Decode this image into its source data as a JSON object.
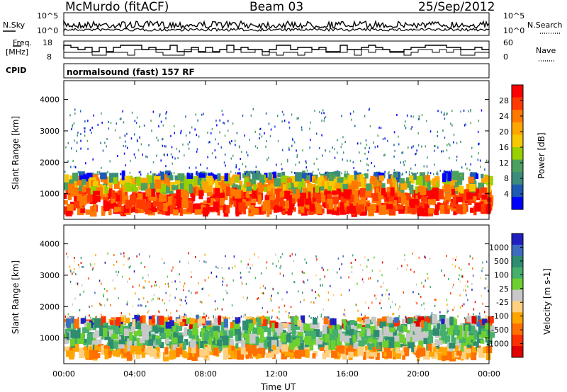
{
  "header": {
    "station": "McMurdo (fitACF)",
    "beam": "Beam 03",
    "date": "25/Sep/2012"
  },
  "noise_panel": {
    "left_label": "N.Sky",
    "right_label": "N.Search",
    "left_ticks": [
      "10^5",
      "10^0"
    ],
    "right_ticks": [
      "10^5",
      "10^0"
    ]
  },
  "freq_panel": {
    "left_label_1": "Freq.",
    "left_label_2": "[MHz]",
    "left_ticks": [
      "18",
      "8"
    ],
    "right_label": "Nave",
    "right_ticks": [
      "60",
      "0"
    ]
  },
  "cpid": {
    "label": "CPID",
    "text": "normalsound (fast) 157 RF"
  },
  "chart_data": [
    {
      "type": "heatmap",
      "name_label": "Power [dB]",
      "ylabel": "Slant Range [km]",
      "yticks": [
        "1000",
        "2000",
        "3000",
        "4000"
      ],
      "ylim": [
        180,
        4600
      ],
      "colorbar": {
        "label": "Power [dB]",
        "ticks": [
          "28",
          "24",
          "20",
          "16",
          "12",
          "8",
          "4"
        ],
        "colors": [
          "#ff0000",
          "#ff3a00",
          "#ff7800",
          "#ffa500",
          "#f5c800",
          "#98d000",
          "#4ca060",
          "#3c8c7c",
          "#1e5ab4",
          "#0000ff"
        ]
      }
    },
    {
      "type": "heatmap",
      "ylabel": "Slant Range [km]",
      "yticks": [
        "1000",
        "2000",
        "3000",
        "4000"
      ],
      "ylim": [
        180,
        4600
      ],
      "colorbar": {
        "label": "Velocity [m s-1]",
        "ticks": [
          "1000",
          "500",
          "100",
          "25",
          "-25",
          "-100",
          "-500",
          "-1000"
        ],
        "colors": [
          "#2020c0",
          "#3c6cc0",
          "#2e8c70",
          "#44b06c",
          "#6cd030",
          "#c8c8c8",
          "#ffd080",
          "#ffa500",
          "#ff7000",
          "#ff3000",
          "#e00000"
        ]
      }
    }
  ],
  "time_axis": {
    "label": "Time UT",
    "ticks": [
      "00:00",
      "04:00",
      "08:00",
      "12:00",
      "16:00",
      "20:00",
      "00:00"
    ]
  },
  "colors": {
    "scatter_blue": "#2850c0",
    "scatter_green": "#3c9c6c",
    "scatter_orange": "#ff8c00",
    "scatter_red": "#ff0000",
    "ground_grey": "#c8c8c8"
  }
}
